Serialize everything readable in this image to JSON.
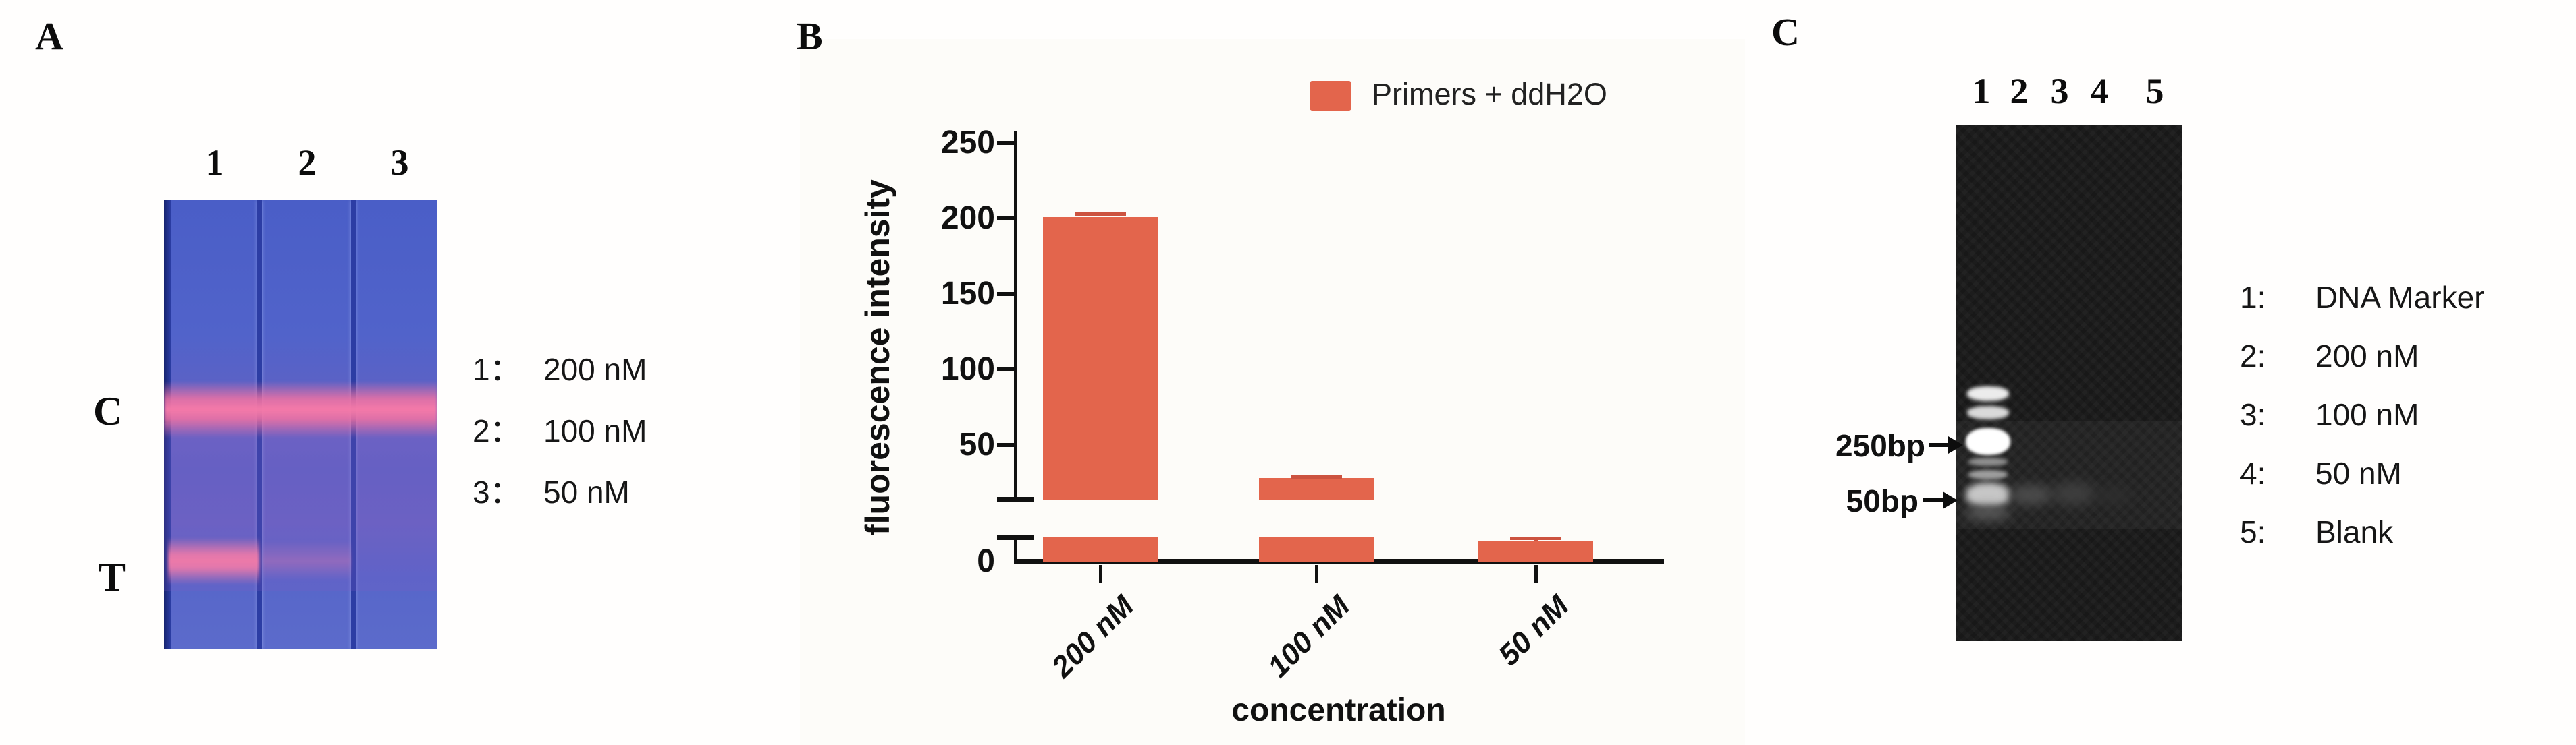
{
  "panels": {
    "a": {
      "label": "A",
      "lane_labels": [
        "1",
        "2",
        "3"
      ],
      "band_labels": [
        "C",
        "T"
      ],
      "legend": [
        {
          "num": "1：",
          "value": "200 nM"
        },
        {
          "num": "2：",
          "value": "100 nM"
        },
        {
          "num": "3：",
          "value": "50 nM"
        }
      ]
    },
    "b": {
      "label": "B"
    },
    "c": {
      "label": "C",
      "lane_labels": [
        "1",
        "2",
        "3",
        "4",
        "5"
      ],
      "marker_labels": [
        {
          "label": "250bp"
        },
        {
          "label": "50bp"
        }
      ],
      "legend": [
        {
          "num": "1:",
          "value": "DNA Marker"
        },
        {
          "num": "2:",
          "value": "200 nM"
        },
        {
          "num": "3:",
          "value": "100 nM"
        },
        {
          "num": "4:",
          "value": "50 nM"
        },
        {
          "num": "5:",
          "value": "Blank"
        }
      ]
    }
  },
  "chart_data": {
    "type": "bar",
    "title": "",
    "categories": [
      "200 nM",
      "100 nM",
      "50 nM"
    ],
    "values": [
      201,
      28,
      10
    ],
    "errors": [
      3,
      2,
      2.5
    ],
    "ylabel": "fluorescence intensity",
    "xlabel": "concentration",
    "ylim": [
      0,
      250
    ],
    "yticks": [
      0,
      50,
      100,
      150,
      200,
      250
    ],
    "axis_break": [
      12,
      22
    ],
    "grid": false,
    "legend_position": "top-right",
    "legend": [
      {
        "label": "Primers + ddH2O",
        "color": "#e3654c"
      }
    ],
    "bar_color": "#e3654c"
  },
  "colors": {
    "bar": "#e3654c",
    "error_bar": "#cc5340",
    "band_pink": "#f272a3",
    "gel_blue": "#5264c8",
    "gel_c_background": "#181818"
  }
}
